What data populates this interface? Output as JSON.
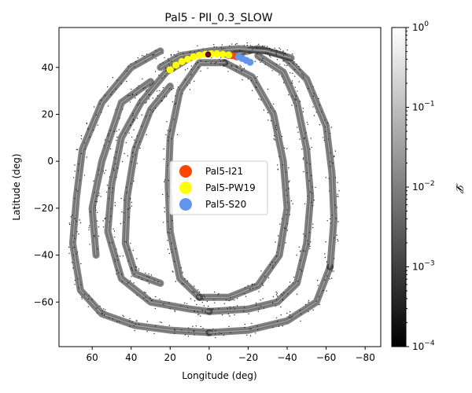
{
  "chart_data": {
    "type": "scatter",
    "title": "Pal5 - PII_0.3_SLOW",
    "xlabel": "Longitude (deg)",
    "ylabel": "Latitude (deg)",
    "xlim": [
      77,
      -88
    ],
    "ylim": [
      -79,
      57
    ],
    "xticks": [
      60,
      40,
      20,
      0,
      -20,
      -40,
      -60,
      -80
    ],
    "xtick_labels": [
      "60",
      "40",
      "20",
      "0",
      "−20",
      "−40",
      "−60",
      "−80"
    ],
    "yticks": [
      40,
      20,
      0,
      -20,
      -40,
      -60
    ],
    "ytick_labels": [
      "40",
      "20",
      "0",
      "−20",
      "−40",
      "−60"
    ],
    "grid": false,
    "legend_position": "center",
    "density_streams": [
      {
        "name": "outer-loop-upper-left",
        "points": [
          [
            25,
            47
          ],
          [
            40,
            40
          ],
          [
            55,
            25
          ],
          [
            65,
            5
          ],
          [
            68,
            -15
          ],
          [
            70,
            -35
          ],
          [
            66,
            -55
          ],
          [
            55,
            -65
          ],
          [
            38,
            -70
          ],
          [
            20,
            -72
          ],
          [
            0,
            -73
          ]
        ]
      },
      {
        "name": "outer-loop-bottom",
        "points": [
          [
            0,
            -73
          ],
          [
            -20,
            -72
          ],
          [
            -40,
            -68
          ],
          [
            -55,
            -60
          ],
          [
            -62,
            -45
          ]
        ]
      },
      {
        "name": "right-outer-arc",
        "points": [
          [
            -10,
            45
          ],
          [
            -25,
            48
          ],
          [
            -38,
            45
          ],
          [
            -50,
            35
          ],
          [
            -60,
            15
          ],
          [
            -63,
            -5
          ],
          [
            -64,
            -25
          ],
          [
            -62,
            -45
          ]
        ]
      },
      {
        "name": "right-inner-arc",
        "points": [
          [
            -25,
            45
          ],
          [
            -38,
            38
          ],
          [
            -45,
            25
          ],
          [
            -50,
            5
          ],
          [
            -52,
            -15
          ],
          [
            -50,
            -35
          ],
          [
            -45,
            -52
          ],
          [
            -35,
            -60
          ],
          [
            -20,
            -63
          ],
          [
            0,
            -64
          ]
        ]
      },
      {
        "name": "inner-ellipse-right",
        "points": [
          [
            -8,
            42
          ],
          [
            -22,
            36
          ],
          [
            -33,
            20
          ],
          [
            -38,
            0
          ],
          [
            -40,
            -20
          ],
          [
            -36,
            -40
          ],
          [
            -25,
            -53
          ],
          [
            -10,
            -58
          ],
          [
            5,
            -58
          ]
        ]
      },
      {
        "name": "inner-ellipse-left",
        "points": [
          [
            5,
            -58
          ],
          [
            15,
            -50
          ],
          [
            20,
            -30
          ],
          [
            21,
            -10
          ],
          [
            20,
            10
          ],
          [
            15,
            30
          ],
          [
            5,
            42
          ],
          [
            -8,
            42
          ]
        ]
      },
      {
        "name": "left-middle-arc",
        "points": [
          [
            8,
            45
          ],
          [
            22,
            38
          ],
          [
            35,
            25
          ],
          [
            45,
            10
          ],
          [
            50,
            -10
          ],
          [
            52,
            -30
          ],
          [
            45,
            -50
          ],
          [
            30,
            -60
          ],
          [
            10,
            -63
          ],
          [
            0,
            -64
          ]
        ]
      },
      {
        "name": "left-inner-stream",
        "points": [
          [
            20,
            32
          ],
          [
            30,
            22
          ],
          [
            38,
            5
          ],
          [
            42,
            -15
          ],
          [
            43,
            -35
          ],
          [
            38,
            -48
          ],
          [
            25,
            -52
          ]
        ]
      },
      {
        "name": "left-spur",
        "points": [
          [
            30,
            34
          ],
          [
            45,
            25
          ],
          [
            55,
            0
          ],
          [
            60,
            -20
          ],
          [
            58,
            -40
          ]
        ]
      },
      {
        "name": "top-arc",
        "points": [
          [
            25,
            40
          ],
          [
            15,
            45
          ],
          [
            0,
            47
          ],
          [
            -15,
            48
          ],
          [
            -30,
            47
          ],
          [
            -42,
            44
          ]
        ]
      }
    ],
    "series": [
      {
        "name": "Pal5-I21",
        "color": "#ff4500",
        "points": [
          [
            -12,
            45
          ],
          [
            -14,
            44.5
          ]
        ]
      },
      {
        "name": "Pal5-PW19",
        "color": "#ffff00",
        "points": [
          [
            20,
            39
          ],
          [
            17,
            41
          ],
          [
            14,
            42.5
          ],
          [
            11,
            43.5
          ],
          [
            8,
            44.5
          ],
          [
            5,
            45.2
          ],
          [
            2,
            45.6
          ],
          [
            -1,
            45.8
          ],
          [
            -4,
            45.8
          ],
          [
            -7,
            45.6
          ],
          [
            -10,
            45.3
          ]
        ]
      },
      {
        "name": "Pal5-S20",
        "color": "#6495ed",
        "points": [
          [
            -15,
            44.5
          ],
          [
            -17,
            43.8
          ],
          [
            -19,
            43
          ],
          [
            -21,
            42.2
          ]
        ]
      }
    ],
    "progenitor": {
      "x": 0.5,
      "y": 45.5
    },
    "colorbar": {
      "label": "𝓛",
      "scale": "log",
      "range": [
        0.0001,
        1
      ],
      "tick_labels": [
        "10−4",
        "10−3",
        "10−2",
        "10−1",
        "100"
      ],
      "colormap": "gray"
    }
  }
}
